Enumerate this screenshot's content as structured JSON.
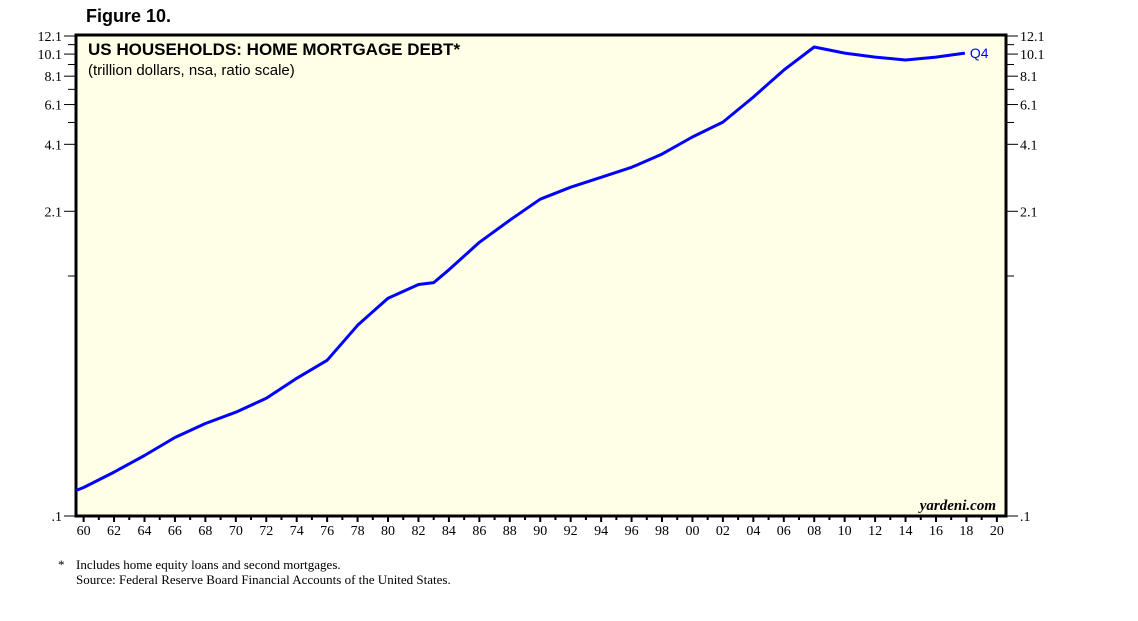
{
  "figure_label": "Figure 10.",
  "footnote_marker": "*",
  "footnote": "Includes home equity loans and second mortgages.",
  "source": "Source: Federal Reserve Board Financial Accounts of the United States.",
  "watermark": "yardeni.com",
  "chart_data": {
    "type": "line",
    "title": "US HOUSEHOLDS: HOME MORTGAGE DEBT*",
    "subtitle": "(trillion dollars, nsa, ratio scale)",
    "y_scale": "log",
    "ylim": [
      0.1,
      12.1
    ],
    "y_ticks": [
      12.1,
      10.1,
      8.1,
      6.1,
      4.1,
      2.1,
      0.1
    ],
    "y_tick_labels": [
      "12.1",
      "10.1",
      "8.1",
      "6.1",
      "4.1",
      "2.1",
      ".1"
    ],
    "y_minor_ticks": [
      11.1,
      9.1,
      7.1,
      5.1,
      1.1
    ],
    "xlim": [
      1959.5,
      2020.6
    ],
    "x_ticks": [
      1960,
      1962,
      1964,
      1966,
      1968,
      1970,
      1972,
      1974,
      1976,
      1978,
      1980,
      1982,
      1984,
      1986,
      1988,
      1990,
      1992,
      1994,
      1996,
      1998,
      2000,
      2002,
      2004,
      2006,
      2008,
      2010,
      2012,
      2014,
      2016,
      2018,
      2020
    ],
    "x_tick_labels": [
      "60",
      "62",
      "64",
      "66",
      "68",
      "70",
      "72",
      "74",
      "76",
      "78",
      "80",
      "82",
      "84",
      "86",
      "88",
      "90",
      "92",
      "94",
      "96",
      "98",
      "00",
      "02",
      "04",
      "06",
      "08",
      "10",
      "12",
      "14",
      "16",
      "18",
      "20"
    ],
    "grid": false,
    "background": "#fffee6",
    "series": [
      {
        "color": "#0000ff",
        "end_label": "Q4",
        "x": [
          1959.5,
          1960,
          1962,
          1964,
          1966,
          1968,
          1970,
          1972,
          1974,
          1976,
          1978,
          1980,
          1982,
          1983,
          1984,
          1986,
          1988,
          1990,
          1992,
          1994,
          1996,
          1998,
          2000,
          2002,
          2004,
          2006,
          2008,
          2010,
          2012,
          2014,
          2016,
          2017.9
        ],
        "y": [
          0.129,
          0.133,
          0.155,
          0.183,
          0.219,
          0.252,
          0.282,
          0.324,
          0.396,
          0.474,
          0.672,
          0.881,
          1.01,
          1.03,
          1.17,
          1.54,
          1.92,
          2.37,
          2.67,
          2.95,
          3.26,
          3.72,
          4.41,
          5.12,
          6.57,
          8.61,
          10.84,
          10.2,
          9.8,
          9.52,
          9.8,
          10.2
        ]
      }
    ]
  }
}
